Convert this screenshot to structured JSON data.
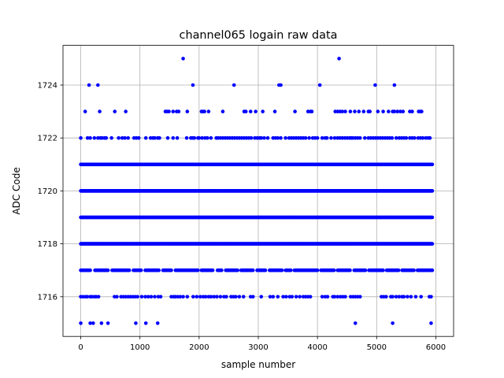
{
  "chart_data": {
    "type": "scatter",
    "title": "channel065 logain raw data",
    "xlabel": "sample number",
    "ylabel": "ADC Code",
    "xlim": [
      -300,
      6300
    ],
    "ylim": [
      1714.5,
      1725.5
    ],
    "xticks": [
      0,
      1000,
      2000,
      3000,
      4000,
      5000,
      6000
    ],
    "yticks": [
      1716,
      1718,
      1720,
      1722,
      1724
    ],
    "xtick_labels": [
      "0",
      "1000",
      "2000",
      "3000",
      "4000",
      "5000",
      "6000"
    ],
    "ytick_labels": [
      "1716",
      "1718",
      "1720",
      "1722",
      "1724"
    ],
    "grid": true,
    "color": "#0000ff",
    "n_samples": 5940,
    "levels": [
      {
        "y": 1725,
        "x": [
          1730,
          4365
        ]
      },
      {
        "y": 1724,
        "x": [
          140,
          290,
          1895,
          2590,
          3350,
          3380,
          4040,
          4975,
          5300
        ]
      },
      {
        "y": 1723,
        "x": [
          75,
          320,
          575,
          760,
          1430,
          1460,
          1490,
          1560,
          1620,
          1655,
          1800,
          2040,
          2065,
          2090,
          2160,
          2400,
          2760,
          2790,
          2870,
          2955,
          3075,
          3280,
          3620,
          3840,
          3880,
          3905,
          4300,
          4340,
          4380,
          4420,
          4470,
          4555,
          4630,
          4700,
          4780,
          4860,
          4885,
          5020,
          5110,
          5200,
          5270,
          5300,
          5350,
          5400,
          5445,
          5560,
          5600,
          5710,
          5740,
          5760
        ]
      },
      {
        "y": 1722,
        "x": [
          0,
          115,
          160,
          230,
          290,
          330,
          360,
          400,
          430,
          520,
          640,
          700,
          745,
          800,
          900,
          940,
          980,
          1100,
          1180,
          1220,
          1250,
          1300,
          1330,
          1470,
          1560,
          1630,
          1790,
          1860,
          1890,
          1920,
          1980,
          2000,
          2050,
          2100,
          2140,
          2200,
          2290,
          2320,
          2360,
          2400,
          2440,
          2480,
          2520,
          2560,
          2600,
          2640,
          2680,
          2720,
          2760,
          2800,
          2840,
          2880,
          2940,
          2980,
          3020,
          3050,
          3100,
          3160,
          3250,
          3290,
          3330,
          3380,
          3460,
          3520,
          3560,
          3600,
          3640,
          3680,
          3720,
          3760,
          3800,
          3860,
          3920,
          3960,
          4000,
          4080,
          4130,
          4160,
          4230,
          4290,
          4340,
          4380,
          4420,
          4460,
          4500,
          4540,
          4570,
          4600,
          4640,
          4680,
          4720,
          4800,
          4860,
          4900,
          4940,
          4980,
          5020,
          5060,
          5100,
          5140,
          5180,
          5220,
          5260,
          5330,
          5380,
          5420,
          5460,
          5500,
          5560,
          5600,
          5640,
          5700,
          5740,
          5780,
          5830,
          5870,
          5900
        ]
      },
      {
        "y": 1721,
        "dense": [
          [
            0,
            5940
          ]
        ]
      },
      {
        "y": 1720,
        "dense": [
          [
            0,
            5940
          ]
        ]
      },
      {
        "y": 1719,
        "dense": [
          [
            0,
            5940
          ]
        ]
      },
      {
        "y": 1718,
        "dense": [
          [
            0,
            5940
          ]
        ]
      },
      {
        "y": 1717,
        "dense": [
          [
            0,
            5940
          ]
        ],
        "gaps": [
          [
            170,
            230
          ],
          [
            470,
            520
          ],
          [
            830,
            880
          ],
          [
            1030,
            1080
          ],
          [
            1330,
            1380
          ],
          [
            1540,
            1590
          ],
          [
            1990,
            2030
          ],
          [
            2240,
            2300
          ],
          [
            2390,
            2440
          ],
          [
            2660,
            2700
          ],
          [
            2920,
            2970
          ],
          [
            3130,
            3180
          ],
          [
            3410,
            3450
          ],
          [
            3560,
            3600
          ],
          [
            4010,
            4050
          ],
          [
            4290,
            4330
          ],
          [
            4560,
            4610
          ],
          [
            4820,
            4860
          ],
          [
            5120,
            5160
          ],
          [
            5380,
            5420
          ],
          [
            5640,
            5680
          ]
        ]
      },
      {
        "y": 1716,
        "x": [
          0,
          40,
          80,
          110,
          160,
          190,
          230,
          260,
          300,
          570,
          610,
          680,
          720,
          760,
          800,
          840,
          880,
          920,
          960,
          1030,
          1090,
          1140,
          1190,
          1250,
          1310,
          1350,
          1530,
          1570,
          1600,
          1640,
          1680,
          1730,
          1800,
          1900,
          1960,
          2020,
          2070,
          2110,
          2160,
          2200,
          2250,
          2300,
          2360,
          2420,
          2460,
          2540,
          2580,
          2620,
          2680,
          2750,
          2870,
          2910,
          3050,
          3200,
          3250,
          3330,
          3420,
          3470,
          3530,
          3570,
          3640,
          3700,
          3760,
          3800,
          3840,
          3880,
          4080,
          4130,
          4170,
          4260,
          4290,
          4340,
          4390,
          4430,
          4470,
          4560,
          4600,
          4640,
          4680,
          4720,
          5080,
          5120,
          5160,
          5240,
          5270,
          5330,
          5380,
          5430,
          5460,
          5520,
          5580,
          5660,
          5750,
          5890,
          5920
        ]
      },
      {
        "y": 1715,
        "x": [
          0,
          160,
          210,
          350,
          460,
          930,
          1100,
          1300,
          4640,
          5270,
          5920
        ]
      }
    ]
  }
}
